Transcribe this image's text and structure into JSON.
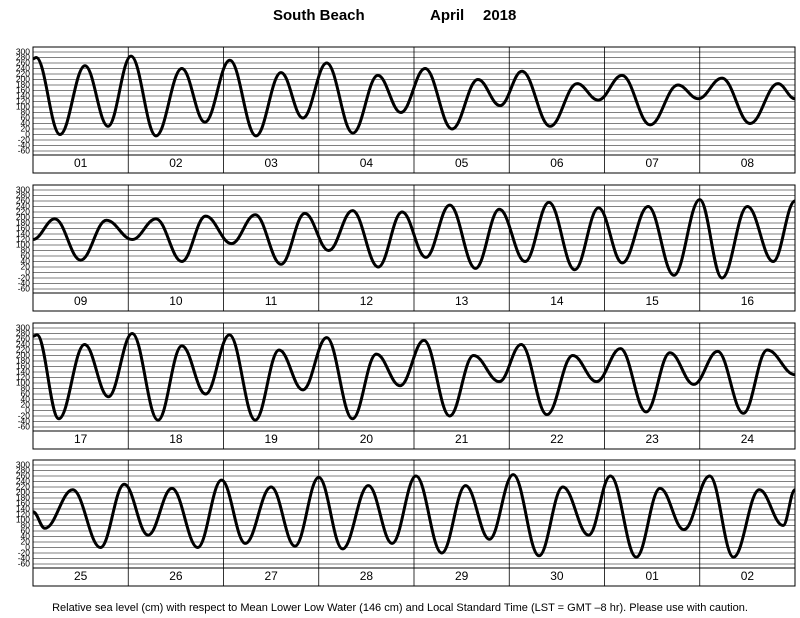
{
  "header": {
    "station": "South Beach",
    "month": "April",
    "year": "2018",
    "note": "Relative sea level (cm) with respect to Mean Lower Low Water (146 cm) and Local Standard Time (LST = GMT –8 hr). Please use with caution."
  },
  "chart_data": [
    {
      "type": "line",
      "categories": [
        "01",
        "02",
        "03",
        "04",
        "05",
        "06",
        "07",
        "08"
      ],
      "x": [
        0,
        0.8,
        6.8,
        13.1,
        18.9,
        24.7,
        31,
        37.5,
        43.3,
        49.6,
        56.2,
        62.5,
        68,
        74,
        80.6,
        86.9,
        92.7,
        98.8,
        105.6,
        112.1,
        117.7,
        123.2,
        130.3,
        137.1,
        142.4,
        148.4,
        155.5,
        162.5,
        167.6,
        173.6,
        180.7,
        187.7,
        192
      ],
      "values": [
        275,
        280,
        0,
        250,
        30,
        285,
        -5,
        240,
        45,
        270,
        -5,
        225,
        60,
        260,
        5,
        215,
        80,
        240,
        20,
        200,
        105,
        230,
        30,
        185,
        125,
        215,
        35,
        180,
        130,
        205,
        40,
        185,
        130
      ],
      "xlim": [
        0,
        192
      ],
      "xticks": [
        0,
        24,
        48,
        72,
        96,
        120,
        144,
        168,
        192
      ],
      "ylim": [
        -60,
        300
      ],
      "yticks": [
        300,
        280,
        260,
        240,
        220,
        200,
        180,
        160,
        140,
        120,
        100,
        80,
        60,
        40,
        20,
        0,
        -20,
        -40,
        -60
      ]
    },
    {
      "type": "line",
      "categories": [
        "09",
        "10",
        "11",
        "12",
        "13",
        "14",
        "15",
        "16"
      ],
      "x": [
        0,
        5.5,
        12,
        18.5,
        25,
        31,
        37.5,
        43.5,
        50,
        56,
        62.5,
        68.5,
        74.5,
        80.5,
        87,
        93,
        99,
        105,
        111.5,
        117.5,
        124,
        130,
        136.5,
        142.5,
        148.5,
        155,
        161.5,
        168,
        173.6,
        180,
        186.5,
        192
      ],
      "values": [
        120,
        195,
        45,
        190,
        120,
        195,
        40,
        205,
        105,
        210,
        30,
        215,
        80,
        225,
        20,
        220,
        55,
        245,
        15,
        230,
        40,
        255,
        10,
        235,
        35,
        240,
        -10,
        265,
        -20,
        240,
        40,
        260
      ],
      "xlim": [
        0,
        192
      ],
      "xticks": [
        0,
        24,
        48,
        72,
        96,
        120,
        144,
        168,
        192
      ],
      "ylim": [
        -60,
        300
      ],
      "yticks": [
        300,
        280,
        260,
        240,
        220,
        200,
        180,
        160,
        140,
        120,
        100,
        80,
        60,
        40,
        20,
        0,
        -20,
        -40,
        -60
      ]
    },
    {
      "type": "line",
      "categories": [
        "17",
        "18",
        "19",
        "20",
        "21",
        "22",
        "23",
        "24"
      ],
      "x": [
        0,
        1,
        6.5,
        13,
        19,
        25,
        31.5,
        37.5,
        43.5,
        49.5,
        56,
        62,
        68,
        74,
        80.5,
        86.5,
        92.5,
        98.5,
        105,
        111,
        117.5,
        123,
        129.5,
        136,
        142,
        148,
        154.5,
        160.5,
        166.5,
        172.5,
        179,
        185,
        192
      ],
      "values": [
        270,
        275,
        -30,
        240,
        50,
        280,
        -35,
        235,
        60,
        275,
        -35,
        220,
        75,
        265,
        -30,
        205,
        90,
        255,
        -20,
        200,
        105,
        240,
        -15,
        200,
        105,
        225,
        -5,
        210,
        95,
        215,
        -10,
        220,
        130
      ],
      "xlim": [
        0,
        192
      ],
      "xticks": [
        0,
        24,
        48,
        72,
        96,
        120,
        144,
        168,
        192
      ],
      "ylim": [
        -60,
        300
      ],
      "yticks": [
        300,
        280,
        260,
        240,
        220,
        200,
        180,
        160,
        140,
        120,
        100,
        80,
        60,
        40,
        20,
        0,
        -20,
        -40,
        -60
      ]
    },
    {
      "type": "line",
      "categories": [
        "25",
        "26",
        "27",
        "28",
        "29",
        "30",
        "01",
        "02"
      ],
      "x": [
        0,
        3,
        10,
        17,
        23,
        29,
        35,
        41.5,
        47.5,
        53.5,
        60,
        66,
        72,
        78,
        84.5,
        90.5,
        96.5,
        103,
        109,
        115,
        121,
        127.5,
        133.5,
        140,
        145.5,
        152,
        158,
        164,
        170.5,
        176.5,
        183,
        189,
        192
      ],
      "values": [
        130,
        70,
        210,
        0,
        230,
        45,
        215,
        0,
        245,
        15,
        220,
        5,
        255,
        -5,
        225,
        15,
        260,
        -20,
        225,
        30,
        265,
        -30,
        220,
        45,
        260,
        -35,
        215,
        65,
        260,
        -35,
        210,
        80,
        210
      ],
      "xlim": [
        0,
        192
      ],
      "xticks": [
        0,
        24,
        48,
        72,
        96,
        120,
        144,
        168,
        192
      ],
      "ylim": [
        -60,
        300
      ],
      "yticks": [
        300,
        280,
        260,
        240,
        220,
        200,
        180,
        160,
        140,
        120,
        100,
        80,
        60,
        40,
        20,
        0,
        -20,
        -40,
        -60
      ]
    }
  ]
}
